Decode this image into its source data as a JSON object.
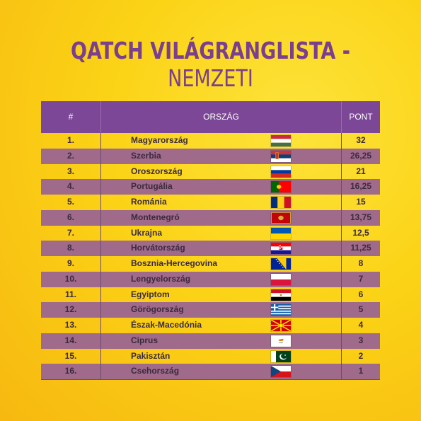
{
  "title": {
    "bold": "QATCH VILÁGRANGLISTA",
    "dash": " - ",
    "light": "NEMZETI"
  },
  "header": {
    "num": "#",
    "country": "ORSZÁG",
    "points": "PONT"
  },
  "rows": [
    {
      "rank": "1.",
      "country": "Magyarország",
      "points": "32",
      "flag": "hungary-flag-icon"
    },
    {
      "rank": "2.",
      "country": "Szerbia",
      "points": "26,25",
      "flag": "serbia-flag-icon"
    },
    {
      "rank": "3.",
      "country": "Oroszország",
      "points": "21",
      "flag": "russia-flag-icon"
    },
    {
      "rank": "4.",
      "country": "Portugália",
      "points": "16,25",
      "flag": "portugal-flag-icon"
    },
    {
      "rank": "5.",
      "country": "Románia",
      "points": "15",
      "flag": "romania-flag-icon"
    },
    {
      "rank": "6.",
      "country": "Montenegró",
      "points": "13,75",
      "flag": "montenegro-flag-icon"
    },
    {
      "rank": "7.",
      "country": "Ukrajna",
      "points": "12,5",
      "flag": "ukraine-flag-icon"
    },
    {
      "rank": "8.",
      "country": "Horvátország",
      "points": "11,25",
      "flag": "croatia-flag-icon"
    },
    {
      "rank": "9.",
      "country": "Bosznia-Hercegovina",
      "points": "8",
      "flag": "bosnia-flag-icon"
    },
    {
      "rank": "10.",
      "country": "Lengyelország",
      "points": "7",
      "flag": "poland-flag-icon"
    },
    {
      "rank": "11.",
      "country": "Egyiptom",
      "points": "6",
      "flag": "egypt-flag-icon"
    },
    {
      "rank": "12.",
      "country": "Görögország",
      "points": "5",
      "flag": "greece-flag-icon"
    },
    {
      "rank": "13.",
      "country": "Észak-Macedónia",
      "points": "4",
      "flag": "north-macedonia-flag-icon"
    },
    {
      "rank": "14.",
      "country": "Ciprus",
      "points": "3",
      "flag": "cyprus-flag-icon"
    },
    {
      "rank": "15.",
      "country": "Pakisztán",
      "points": "2",
      "flag": "pakistan-flag-icon"
    },
    {
      "rank": "16.",
      "country": "Csehország",
      "points": "1",
      "flag": "czechia-flag-icon"
    }
  ]
}
